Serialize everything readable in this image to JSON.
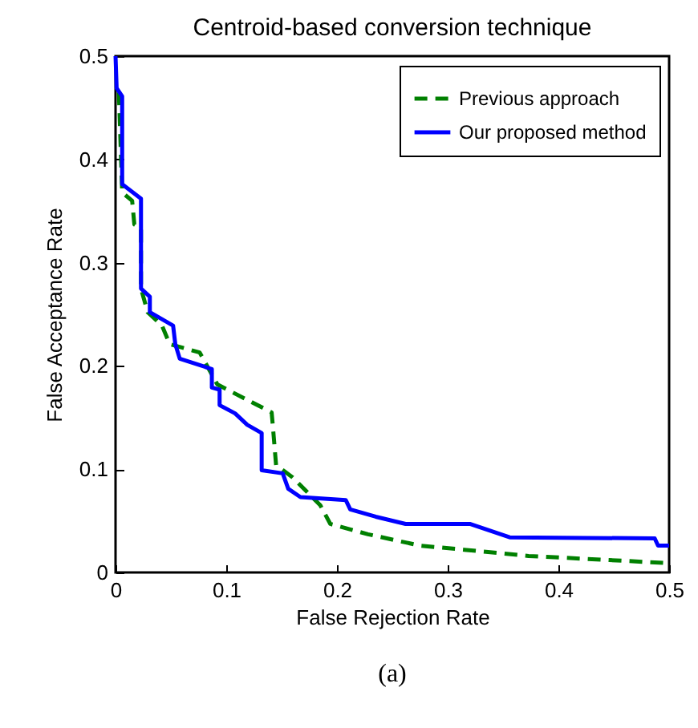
{
  "chart_data": {
    "type": "line",
    "title": "Centroid-based conversion technique",
    "xlabel": "False Rejection Rate",
    "ylabel": "False Acceptance Rate",
    "annotations": [
      "(a)"
    ],
    "xlim": [
      0,
      0.5
    ],
    "ylim": [
      0,
      0.5
    ],
    "xticks": [
      0,
      0.1,
      0.2,
      0.3,
      0.4,
      0.5
    ],
    "yticks": [
      0,
      0.1,
      0.2,
      0.3,
      0.4,
      0.5
    ],
    "grid": false,
    "legend": "top right",
    "series": [
      {
        "name": "Previous approach",
        "color": "#008000",
        "line_style": "dashed",
        "x": [
          0.003,
          0.006,
          0.015,
          0.017,
          0.023,
          0.023,
          0.029,
          0.042,
          0.049,
          0.076,
          0.092,
          0.141,
          0.142,
          0.145,
          0.16,
          0.185,
          0.194,
          0.228,
          0.275,
          0.315,
          0.373,
          0.446,
          0.5
        ],
        "values": [
          0.465,
          0.368,
          0.36,
          0.337,
          0.333,
          0.275,
          0.252,
          0.239,
          0.221,
          0.213,
          0.182,
          0.155,
          0.143,
          0.104,
          0.092,
          0.065,
          0.047,
          0.037,
          0.026,
          0.022,
          0.016,
          0.012,
          0.009
        ]
      },
      {
        "name": "Our proposed method",
        "color": "#0000ff",
        "line_style": "solid",
        "x": [
          0,
          0.001,
          0.006,
          0.006,
          0.023,
          0.023,
          0.031,
          0.031,
          0.052,
          0.054,
          0.058,
          0.087,
          0.087,
          0.094,
          0.094,
          0.108,
          0.119,
          0.132,
          0.132,
          0.151,
          0.156,
          0.167,
          0.208,
          0.212,
          0.235,
          0.262,
          0.32,
          0.356,
          0.487,
          0.49,
          0.5
        ],
        "values": [
          0.5,
          0.469,
          0.461,
          0.376,
          0.362,
          0.275,
          0.267,
          0.252,
          0.239,
          0.221,
          0.207,
          0.197,
          0.179,
          0.177,
          0.162,
          0.154,
          0.143,
          0.135,
          0.099,
          0.096,
          0.081,
          0.073,
          0.07,
          0.061,
          0.054,
          0.047,
          0.047,
          0.034,
          0.033,
          0.026,
          0.026
        ]
      }
    ]
  }
}
